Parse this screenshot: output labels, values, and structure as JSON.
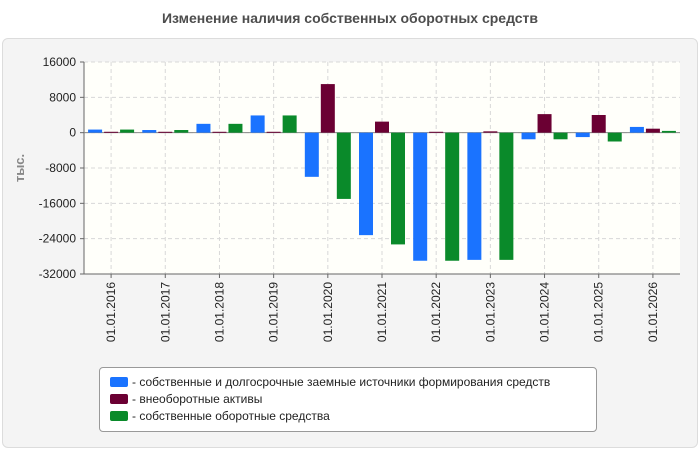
{
  "chart_data": {
    "type": "bar",
    "title": "Изменение наличия собственных оборотных средств",
    "ylabel": "тыс.",
    "xlabel": "",
    "ylim": [
      -32000,
      16000
    ],
    "yticks": [
      16000,
      8000,
      0,
      -8000,
      -16000,
      -24000,
      -32000
    ],
    "grid": true,
    "legend_position": "bottom",
    "categories": [
      "01.01.2016",
      "01.01.2017",
      "01.01.2018",
      "01.01.2019",
      "01.01.2020",
      "01.01.2021",
      "01.01.2022",
      "01.01.2023",
      "01.01.2024",
      "01.01.2025",
      "01.01.2026"
    ],
    "series": [
      {
        "name": "собственные и долгосрочные заемные источники формирования средств",
        "color": "#1a73ff",
        "values": [
          700,
          600,
          2000,
          3900,
          -10000,
          -23200,
          -29000,
          -28800,
          -1500,
          -1000,
          1300
        ]
      },
      {
        "name": "внеоборотные активы",
        "color": "#6b0033",
        "values": [
          200,
          200,
          200,
          200,
          11000,
          2500,
          200,
          300,
          4200,
          4000,
          900
        ]
      },
      {
        "name": "собственные оборотные средства",
        "color": "#0a8a2a",
        "values": [
          700,
          600,
          2000,
          3900,
          -15000,
          -25300,
          -29000,
          -28800,
          -1500,
          -2000,
          400
        ]
      }
    ]
  }
}
